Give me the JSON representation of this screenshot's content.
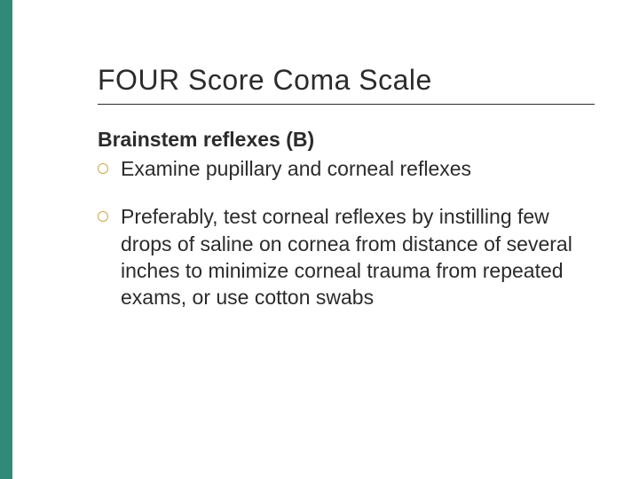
{
  "accent_color": "#2f8a78",
  "bullet_ring_color": "#c9a94e",
  "text_color": "#2b2b2b",
  "background_color": "#ffffff",
  "title_fontsize": 32,
  "heading_fontsize": 23,
  "body_fontsize": 23,
  "slide": {
    "title": "FOUR Score Coma Scale",
    "section_heading": "Brainstem reflexes (B)",
    "bullets": [
      "Examine pupillary and corneal reflexes",
      "Preferably, test corneal reflexes by instilling few drops of saline on cornea from distance of several inches to minimize corneal trauma from repeated exams, or use cotton swabs"
    ]
  }
}
